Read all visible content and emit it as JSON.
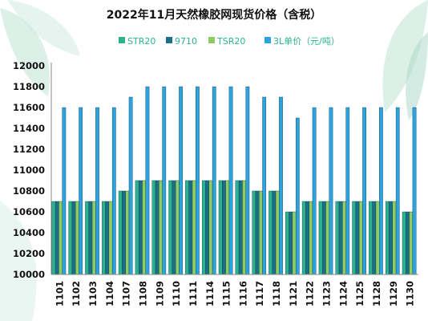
{
  "chart_data": {
    "type": "bar",
    "title": "2022年11月天然橡胶网现货价格（含税）",
    "legend_position": "top",
    "grid": false,
    "ylim": [
      10000,
      12000
    ],
    "yticks": [
      10000,
      10200,
      10400,
      10600,
      10800,
      11000,
      11200,
      11400,
      11600,
      11800,
      12000
    ],
    "categories": [
      "1101",
      "1102",
      "1103",
      "1104",
      "1107",
      "1108",
      "1109",
      "1110",
      "1111",
      "1114",
      "1115",
      "1116",
      "1117",
      "1118",
      "1121",
      "1122",
      "1123",
      "1124",
      "1125",
      "1128",
      "1129",
      "1130"
    ],
    "series": [
      {
        "name": "STR20",
        "color": "#2bb38f",
        "values": [
          10700,
          10700,
          10700,
          10700,
          10800,
          10900,
          10900,
          10900,
          10900,
          10900,
          10900,
          10900,
          10800,
          10800,
          10600,
          10700,
          10700,
          10700,
          10700,
          10700,
          10700,
          10600
        ]
      },
      {
        "name": "9710",
        "color": "#1b6f86",
        "values": [
          10700,
          10700,
          10700,
          10700,
          10800,
          10900,
          10900,
          10900,
          10900,
          10900,
          10900,
          10900,
          10800,
          10800,
          10600,
          10700,
          10700,
          10700,
          10700,
          10700,
          10700,
          10600
        ]
      },
      {
        "name": "TSR20",
        "color": "#8fcd63",
        "values": [
          10700,
          10700,
          10700,
          10700,
          10800,
          10900,
          10900,
          10900,
          10900,
          10900,
          10900,
          10900,
          10800,
          10800,
          10600,
          10700,
          10700,
          10700,
          10700,
          10700,
          10700,
          10600
        ]
      },
      {
        "name": "3L单价（元/吨）",
        "color": "#2aa3e0",
        "values": [
          11600,
          11600,
          11600,
          11600,
          11700,
          11800,
          11800,
          11800,
          11800,
          11800,
          11800,
          11800,
          11700,
          11700,
          11500,
          11600,
          11600,
          11600,
          11600,
          11600,
          11600,
          11600
        ]
      }
    ]
  }
}
